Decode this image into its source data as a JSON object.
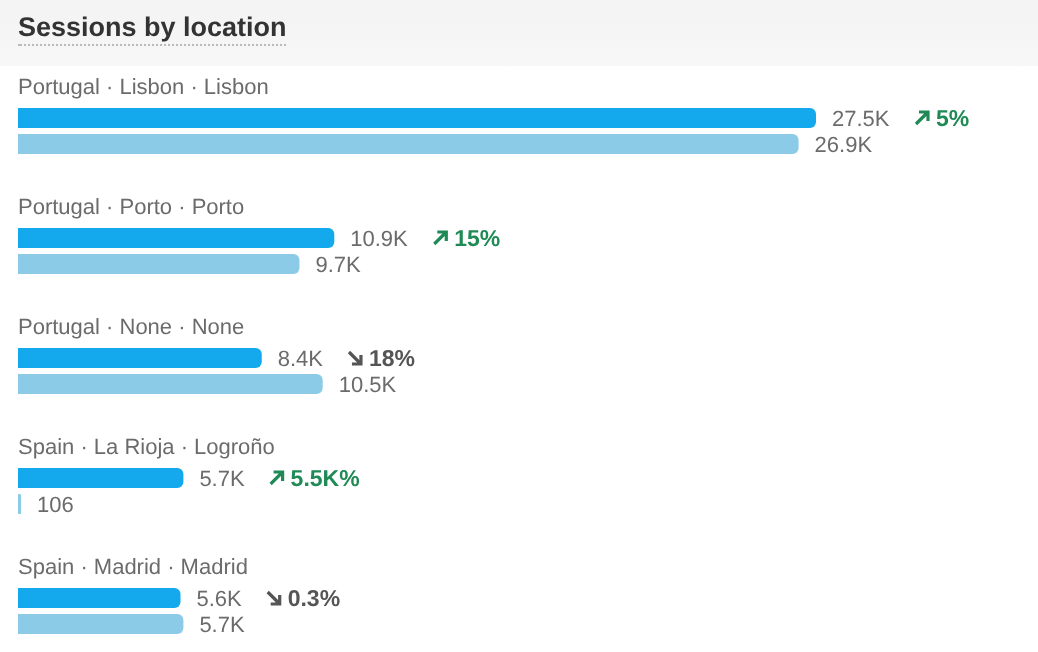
{
  "chart_data": {
    "type": "bar",
    "orientation": "horizontal",
    "title": "Sessions by location",
    "categories": [
      "Portugal · Lisbon · Lisbon",
      "Portugal · Porto · Porto",
      "Portugal · None · None",
      "Spain · La Rioja · Logroño",
      "Spain · Madrid · Madrid"
    ],
    "series": [
      {
        "color": "#14a9ec",
        "values": [
          27500,
          10900,
          8400,
          5700,
          5600
        ],
        "value_labels": [
          "27.5K",
          "10.9K",
          "8.4K",
          "5.7K",
          "5.6K"
        ]
      },
      {
        "color": "#8bcbe7",
        "values": [
          26900,
          9700,
          10500,
          106,
          5700
        ],
        "value_labels": [
          "26.9K",
          "9.7K",
          "10.5K",
          "106",
          "5.7K"
        ]
      }
    ],
    "annotations": [
      "5%",
      "15%",
      "18%",
      "5.5K%",
      "0.3%"
    ],
    "legend": false,
    "grid": false
  }
}
